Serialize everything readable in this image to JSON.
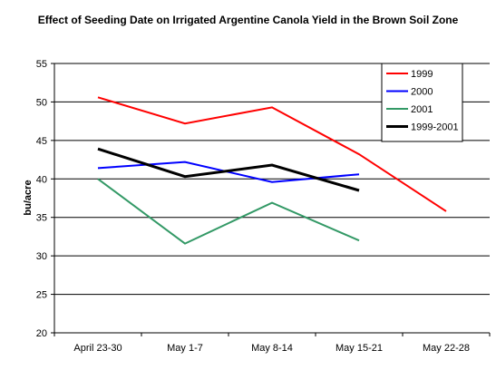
{
  "chart_data": {
    "type": "line",
    "title": "Effect of Seeding Date on Irrigated Argentine Canola Yield in the Brown Soil Zone",
    "xlabel": "",
    "ylabel": "bu/acre",
    "categories": [
      "April 23-30",
      "May 1-7",
      "May 8-14",
      "May 15-21",
      "May 22-28"
    ],
    "ylim": [
      20,
      55
    ],
    "yticks": [
      20,
      25,
      30,
      35,
      40,
      45,
      50,
      55
    ],
    "grid": true,
    "legend_position": "top-right",
    "series": [
      {
        "name": "1999",
        "color": "#ff0000",
        "width": 2,
        "values": [
          50.6,
          47.2,
          49.3,
          43.2,
          35.8
        ]
      },
      {
        "name": "2000",
        "color": "#0000ff",
        "width": 2,
        "values": [
          41.4,
          42.2,
          39.6,
          40.6,
          null
        ]
      },
      {
        "name": "2001",
        "color": "#339966",
        "width": 2,
        "values": [
          40.0,
          31.6,
          36.9,
          32.0,
          null
        ]
      },
      {
        "name": "1999-2001",
        "color": "#000000",
        "width": 3,
        "values": [
          43.9,
          40.3,
          41.8,
          38.5,
          null
        ]
      }
    ]
  }
}
